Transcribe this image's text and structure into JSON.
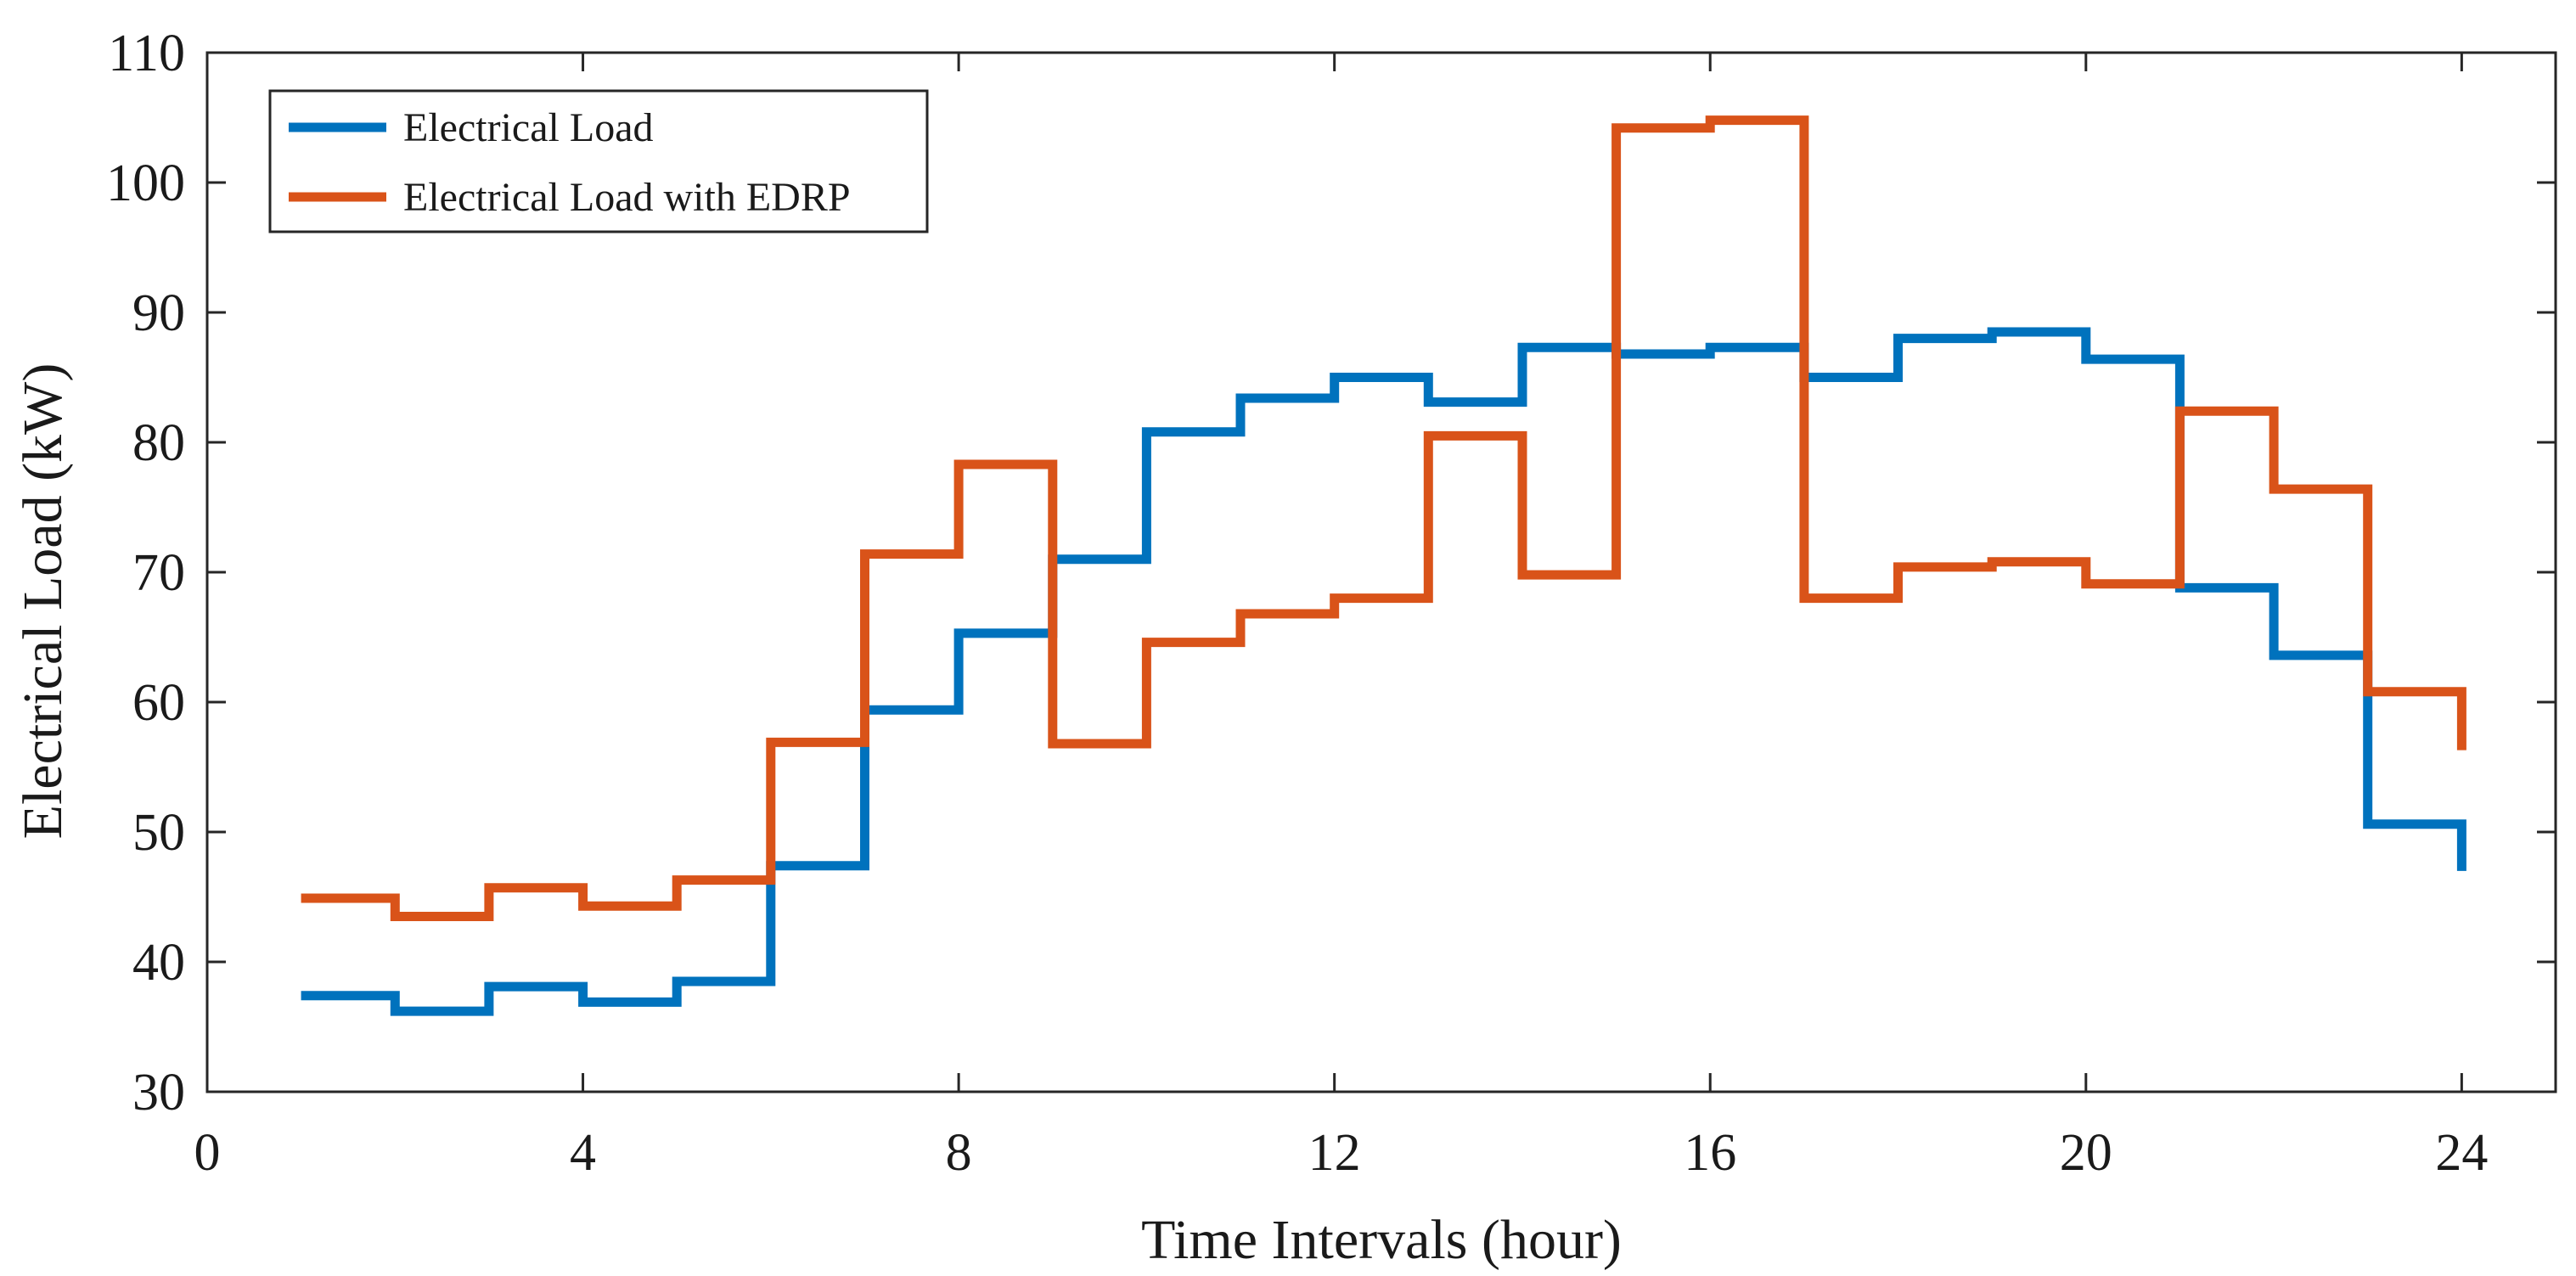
{
  "chart_data": {
    "type": "line",
    "step": "post",
    "title": "",
    "xlabel": "Time Intervals (hour)",
    "ylabel": "Electrical Load (kW)",
    "xlim": [
      0,
      25
    ],
    "ylim": [
      30,
      110
    ],
    "xticks": [
      0,
      4,
      8,
      12,
      16,
      20,
      24
    ],
    "yticks": [
      30,
      40,
      50,
      60,
      70,
      80,
      90,
      100,
      110
    ],
    "grid": false,
    "legend_position": "top-left",
    "x": [
      1,
      2,
      3,
      4,
      5,
      6,
      7,
      8,
      9,
      10,
      11,
      12,
      13,
      14,
      15,
      16,
      17,
      18,
      19,
      20,
      21,
      22,
      23,
      24
    ],
    "series": [
      {
        "name": "Electrical Load",
        "color": "#0072BD",
        "values": [
          37.4,
          36.2,
          38.1,
          36.9,
          38.5,
          47.4,
          59.4,
          65.3,
          71.0,
          80.8,
          83.4,
          85.0,
          83.1,
          87.3,
          86.8,
          87.3,
          85.0,
          88.0,
          88.5,
          86.4,
          68.8,
          63.6,
          50.6,
          47.0
        ]
      },
      {
        "name": "Electrical Load with EDRP",
        "color": "#D95319",
        "values": [
          44.9,
          43.5,
          45.7,
          44.3,
          46.3,
          56.9,
          71.4,
          78.3,
          56.8,
          64.6,
          66.8,
          68.0,
          80.5,
          69.8,
          104.2,
          104.8,
          68.0,
          70.4,
          70.8,
          69.1,
          82.4,
          76.4,
          60.8,
          56.3
        ]
      }
    ]
  }
}
